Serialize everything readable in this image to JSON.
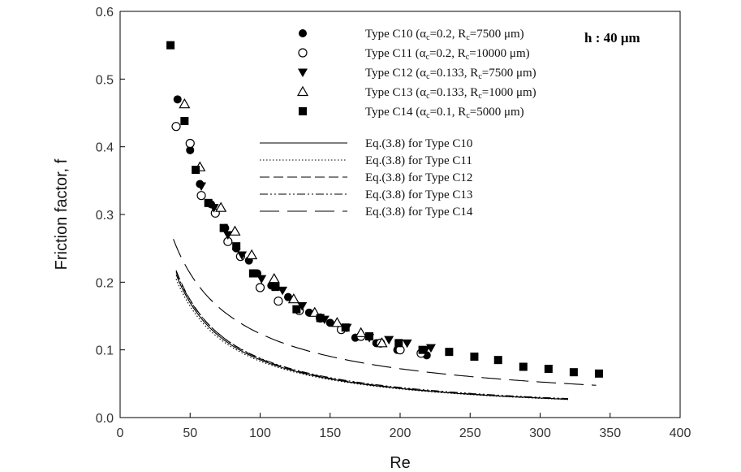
{
  "chart_data": {
    "type": "scatter",
    "xlabel": "Re",
    "ylabel": "Friction factor, f",
    "xlim": [
      0,
      400
    ],
    "ylim": [
      0,
      0.6
    ],
    "x_ticks": [
      "0",
      "50",
      "100",
      "150",
      "200",
      "250",
      "300",
      "350",
      "400"
    ],
    "y_ticks": [
      "0.0",
      "0.1",
      "0.2",
      "0.3",
      "0.4",
      "0.5",
      "0.6"
    ],
    "grid": false,
    "legend_position": "top-right",
    "annotation": "h : 40 μm",
    "series": [
      {
        "name": "Type C10 (αc=0.2, Rc=7500 μm)",
        "sub": "Type C10 (α",
        "mid": "=0.2, R",
        "tail": "=7500 μm)",
        "marker": "circle-filled",
        "points": [
          [
            41,
            0.47
          ],
          [
            50,
            0.395
          ],
          [
            57,
            0.345
          ],
          [
            65,
            0.315
          ],
          [
            75,
            0.28
          ],
          [
            83,
            0.25
          ],
          [
            92,
            0.232
          ],
          [
            98,
            0.213
          ],
          [
            108,
            0.195
          ],
          [
            120,
            0.178
          ],
          [
            135,
            0.155
          ],
          [
            150,
            0.14
          ],
          [
            168,
            0.118
          ],
          [
            183,
            0.11
          ],
          [
            198,
            0.1
          ],
          [
            219,
            0.092
          ]
        ]
      },
      {
        "name": "Type C11 (αc=0.2, Rc=10000 μm)",
        "sub": "Type C11 (α",
        "mid": "=0.2, R",
        "tail": "=10000 μm)",
        "marker": "circle-open",
        "points": [
          [
            40,
            0.43
          ],
          [
            50,
            0.405
          ],
          [
            58,
            0.328
          ],
          [
            68,
            0.302
          ],
          [
            77,
            0.26
          ],
          [
            86,
            0.238
          ],
          [
            100,
            0.192
          ],
          [
            113,
            0.172
          ],
          [
            128,
            0.158
          ],
          [
            143,
            0.147
          ],
          [
            158,
            0.13
          ],
          [
            172,
            0.12
          ],
          [
            186,
            0.11
          ],
          [
            200,
            0.1
          ],
          [
            215,
            0.095
          ]
        ]
      },
      {
        "name": "Type C12 (αc=0.133, Rc=7500 μm)",
        "sub": "Type C12 (α",
        "mid": "=0.133, R",
        "tail": "=7500 μm)",
        "marker": "triangle-down-filled",
        "points": [
          [
            58,
            0.342
          ],
          [
            67,
            0.31
          ],
          [
            77,
            0.27
          ],
          [
            87,
            0.24
          ],
          [
            101,
            0.205
          ],
          [
            116,
            0.188
          ],
          [
            130,
            0.165
          ],
          [
            146,
            0.145
          ],
          [
            162,
            0.133
          ],
          [
            178,
            0.118
          ],
          [
            192,
            0.115
          ],
          [
            205,
            0.11
          ],
          [
            218,
            0.1
          ],
          [
            222,
            0.103
          ]
        ]
      },
      {
        "name": "Type C13 (αc=0.133, Rc=1000 μm)",
        "sub": "Type C13 (α",
        "mid": "=0.133, R",
        "tail": "=1000 μm)",
        "marker": "triangle-up-open",
        "points": [
          [
            46,
            0.463
          ],
          [
            57,
            0.37
          ],
          [
            72,
            0.31
          ],
          [
            82,
            0.275
          ],
          [
            94,
            0.24
          ],
          [
            110,
            0.205
          ],
          [
            124,
            0.175
          ],
          [
            139,
            0.155
          ],
          [
            155,
            0.14
          ],
          [
            172,
            0.125
          ],
          [
            187,
            0.11
          ]
        ]
      },
      {
        "name": "Type C14 (αc=0.1, Rc=5000 μm)",
        "sub": "Type C14 (α",
        "mid": "=0.1, R",
        "tail": "=5000 μm)",
        "marker": "square-filled",
        "points": [
          [
            36,
            0.55
          ],
          [
            46,
            0.438
          ],
          [
            54,
            0.366
          ],
          [
            63,
            0.317
          ],
          [
            74,
            0.28
          ],
          [
            83,
            0.253
          ],
          [
            95,
            0.213
          ],
          [
            111,
            0.193
          ],
          [
            126,
            0.16
          ],
          [
            143,
            0.147
          ],
          [
            161,
            0.133
          ],
          [
            178,
            0.12
          ],
          [
            199,
            0.11
          ],
          [
            216,
            0.1
          ],
          [
            235,
            0.097
          ],
          [
            253,
            0.09
          ],
          [
            270,
            0.085
          ],
          [
            288,
            0.075
          ],
          [
            306,
            0.072
          ],
          [
            324,
            0.067
          ],
          [
            342,
            0.065
          ]
        ]
      }
    ],
    "curves": [
      {
        "name": "Eq.(3.8) for Type C10",
        "dash": "",
        "C": 8.15,
        "n": 0.99,
        "x0": 40,
        "x1": 320
      },
      {
        "name": "Eq.(3.8) for Type C11",
        "dash": "1.5,2.5",
        "C": 7.6,
        "n": 0.98,
        "x0": 40,
        "x1": 320
      },
      {
        "name": "Eq.(3.8) for Type C12",
        "dash": "12,5",
        "C": 8.7,
        "n": 1.0,
        "x0": 40,
        "x1": 320
      },
      {
        "name": "Eq.(3.8) for Type C13",
        "dash": "10,3,2,3,2,3",
        "C": 8.0,
        "n": 0.98,
        "x0": 40,
        "x1": 320
      },
      {
        "name": "Eq.(3.8) for Type C14",
        "dash": "24,10",
        "C": 4.5,
        "n": 0.78,
        "x0": 38,
        "x1": 340
      }
    ]
  }
}
